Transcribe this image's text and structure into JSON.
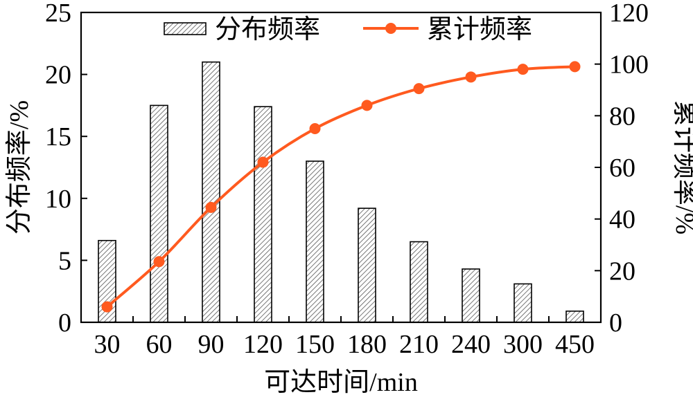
{
  "chart_data": {
    "type": "bar",
    "categories": [
      "30",
      "60",
      "90",
      "120",
      "150",
      "180",
      "210",
      "240",
      "300",
      "450"
    ],
    "series": [
      {
        "name": "分布频率",
        "type": "bar",
        "axis": "left",
        "values": [
          6.6,
          17.5,
          21.0,
          17.4,
          13.0,
          9.2,
          6.5,
          4.3,
          3.1,
          0.9
        ]
      },
      {
        "name": "累计频率",
        "type": "line",
        "axis": "right",
        "values": [
          6.0,
          23.5,
          44.5,
          62.0,
          75.0,
          84.0,
          90.5,
          95.0,
          98.0,
          99.0
        ]
      }
    ],
    "xlabel": "可达时间/min",
    "ylabel": "分布频率/%",
    "y2label": "累计频率/%",
    "ylim": [
      0,
      25
    ],
    "y2lim": [
      0,
      120
    ],
    "yticks": [
      "0",
      "5",
      "10",
      "15",
      "20",
      "25"
    ],
    "y2ticks": [
      "0",
      "20",
      "40",
      "60",
      "80",
      "100",
      "120"
    ],
    "legend_position": "top",
    "grid": false,
    "colors": {
      "bar_hatch": "#555555",
      "bar_fill": "#ffffff",
      "line": "#ff5a1f"
    }
  }
}
